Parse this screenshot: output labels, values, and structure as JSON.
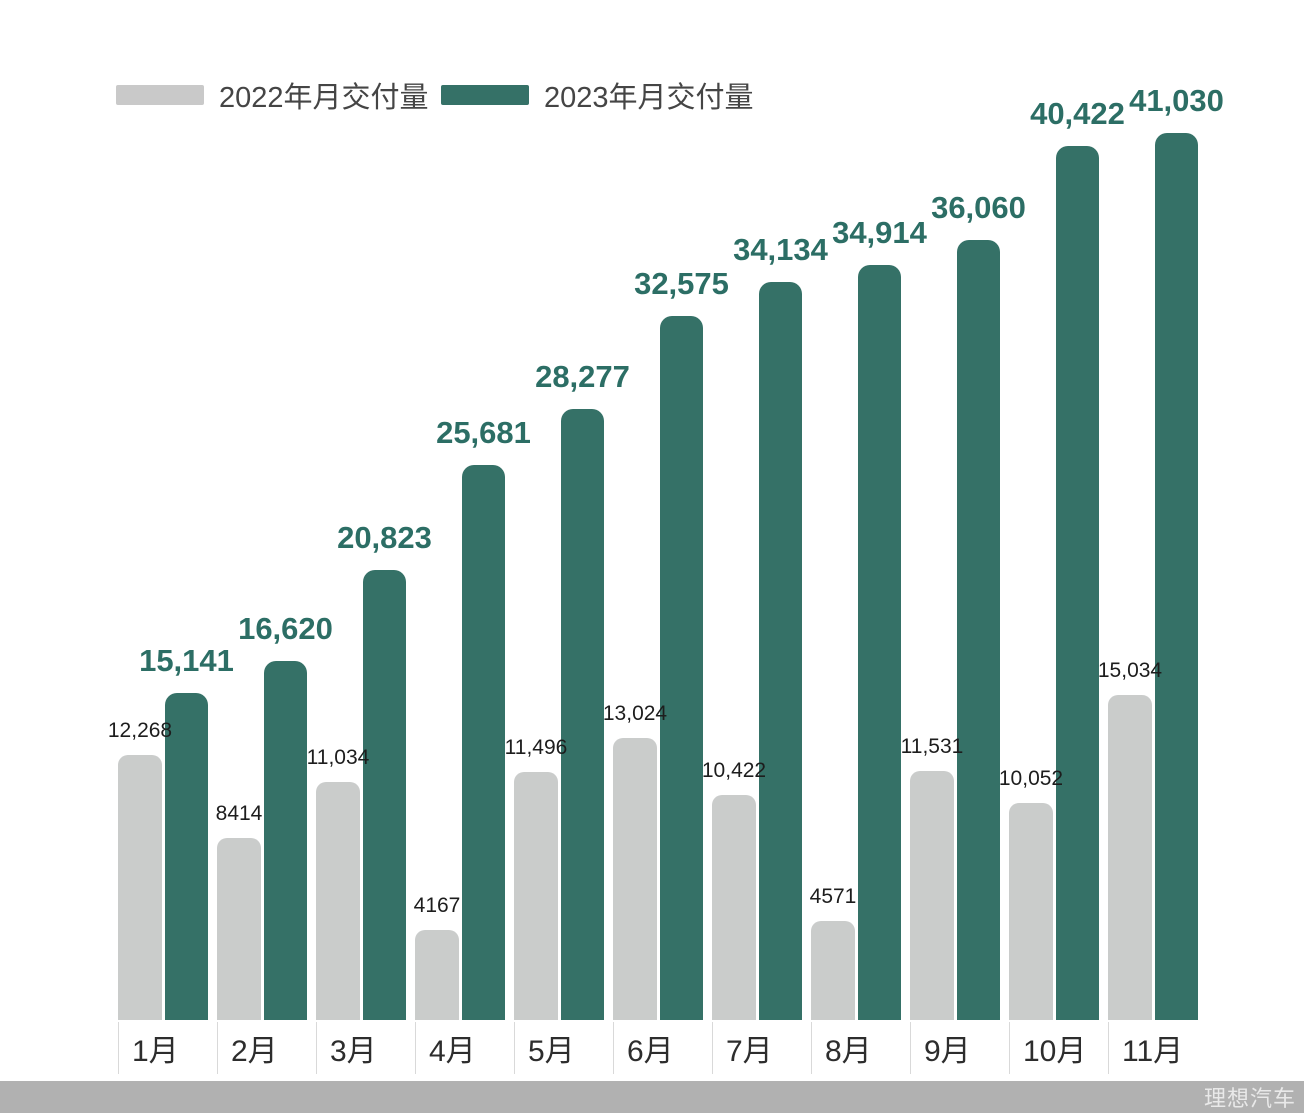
{
  "legend": [
    {
      "label": "2022年月交付量",
      "color": "#c9c9c9"
    },
    {
      "label": "2023年月交付量",
      "color": "#357167"
    }
  ],
  "footer": {
    "brand": "理想汽车",
    "bar_color": "#b1b1b1",
    "text_color": "#e9e9e9"
  },
  "chart_data": {
    "type": "bar",
    "title": "",
    "xlabel": "",
    "ylabel": "",
    "categories": [
      "1月",
      "2月",
      "3月",
      "4月",
      "5月",
      "6月",
      "7月",
      "8月",
      "9月",
      "10月",
      "11月"
    ],
    "series": [
      {
        "name": "2022年月交付量",
        "color": "#cacccb",
        "label_color": "#1d1d1d",
        "values": [
          12268,
          8414,
          11034,
          4167,
          11496,
          13024,
          10422,
          4571,
          11531,
          10052,
          15034
        ],
        "labels": [
          "12,268",
          "8414",
          "11,034",
          "4167",
          "11,496",
          "13,024",
          "10,422",
          "4571",
          "11,531",
          "10,052",
          "15,034"
        ]
      },
      {
        "name": "2023年月交付量",
        "color": "#357167",
        "label_color": "#2c6e65",
        "values": [
          15141,
          16620,
          20823,
          25681,
          28277,
          32575,
          34134,
          34914,
          36060,
          40422,
          41030
        ],
        "labels": [
          "15,141",
          "16,620",
          "20,823",
          "25,681",
          "28,277",
          "32,575",
          "34,134",
          "34,914",
          "36,060",
          "40,422",
          "41,030"
        ]
      }
    ],
    "ylim": [
      0,
      41030
    ],
    "grid": false,
    "legend_position": "top-left",
    "bar_labels_shown": true
  }
}
